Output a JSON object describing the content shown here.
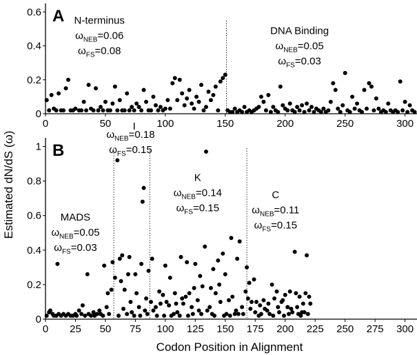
{
  "figure": {
    "ylabel": "Estimated  dN/dS (ω)",
    "xlabel": "Codon Position in Alignment"
  },
  "chart_data": [
    {
      "type": "scatter",
      "panel_label": "A",
      "xlim": [
        0,
        310
      ],
      "ylim": [
        0,
        0.65
      ],
      "x_ticks": [
        0,
        50,
        100,
        150,
        200,
        250,
        300
      ],
      "y_ticks": [
        0,
        0.2,
        0.4,
        0.6
      ],
      "y_tick_labels": [
        "0",
        "0.2",
        "0.4",
        "0.6"
      ],
      "extra_label": {
        "text": "I",
        "x": 74
      },
      "boundaries": [
        151
      ],
      "annotations": [
        {
          "title": "N-terminus",
          "x": 45,
          "y": 0.53,
          "neb": "0.06",
          "fs": "0.08"
        },
        {
          "title": "DNA Binding",
          "x": 212,
          "y": 0.47,
          "neb": "0.05",
          "fs": "0.03"
        }
      ],
      "points": [
        [
          1,
          0.08
        ],
        [
          3,
          0.02
        ],
        [
          5,
          0.11
        ],
        [
          7,
          0.03
        ],
        [
          9,
          0.02
        ],
        [
          11,
          0.12
        ],
        [
          13,
          0.02
        ],
        [
          15,
          0.02
        ],
        [
          17,
          0.15
        ],
        [
          19,
          0.2
        ],
        [
          21,
          0.02
        ],
        [
          23,
          0.02
        ],
        [
          25,
          0.03
        ],
        [
          28,
          0.02
        ],
        [
          30,
          0.02
        ],
        [
          32,
          0.07
        ],
        [
          34,
          0.02
        ],
        [
          36,
          0.17
        ],
        [
          38,
          0.03
        ],
        [
          40,
          0.02
        ],
        [
          42,
          0.15
        ],
        [
          44,
          0.02
        ],
        [
          46,
          0.04
        ],
        [
          48,
          0.02
        ],
        [
          50,
          0.07
        ],
        [
          52,
          0.02
        ],
        [
          54,
          0.02
        ],
        [
          56,
          0.06
        ],
        [
          58,
          0.16
        ],
        [
          60,
          0.02
        ],
        [
          62,
          0.08
        ],
        [
          64,
          0.02
        ],
        [
          66,
          0.02
        ],
        [
          68,
          0.12
        ],
        [
          70,
          0.02
        ],
        [
          72,
          0.04
        ],
        [
          74,
          0.02
        ],
        [
          76,
          0.06
        ],
        [
          78,
          0.04
        ],
        [
          80,
          0.02
        ],
        [
          82,
          0.14
        ],
        [
          84,
          0.07
        ],
        [
          86,
          0.02
        ],
        [
          88,
          0.02
        ],
        [
          90,
          0.1
        ],
        [
          92,
          0.05
        ],
        [
          94,
          0.02
        ],
        [
          96,
          0.04
        ],
        [
          98,
          0.02
        ],
        [
          100,
          0.03
        ],
        [
          102,
          0.08
        ],
        [
          104,
          0.03
        ],
        [
          106,
          0.18
        ],
        [
          108,
          0.21
        ],
        [
          110,
          0.08
        ],
        [
          112,
          0.2
        ],
        [
          114,
          0.12
        ],
        [
          116,
          0.05
        ],
        [
          118,
          0.09
        ],
        [
          120,
          0.14
        ],
        [
          122,
          0.06
        ],
        [
          124,
          0.03
        ],
        [
          126,
          0.1
        ],
        [
          128,
          0.07
        ],
        [
          130,
          0.17
        ],
        [
          132,
          0.02
        ],
        [
          134,
          0.04
        ],
        [
          136,
          0.13
        ],
        [
          138,
          0.08
        ],
        [
          140,
          0.11
        ],
        [
          142,
          0.16
        ],
        [
          144,
          0.02
        ],
        [
          146,
          0.19
        ],
        [
          148,
          0.21
        ],
        [
          150,
          0.23
        ],
        [
          152,
          0.02
        ],
        [
          154,
          0.01
        ],
        [
          156,
          0.01
        ],
        [
          158,
          0.03
        ],
        [
          160,
          0.01
        ],
        [
          162,
          0.02
        ],
        [
          164,
          0.01
        ],
        [
          166,
          0.04
        ],
        [
          168,
          0.01
        ],
        [
          170,
          0.02
        ],
        [
          172,
          0.01
        ],
        [
          174,
          0.02
        ],
        [
          176,
          0.03
        ],
        [
          178,
          0.04
        ],
        [
          180,
          0.1
        ],
        [
          182,
          0.07
        ],
        [
          184,
          0.02
        ],
        [
          186,
          0.11
        ],
        [
          188,
          0.01
        ],
        [
          190,
          0.04
        ],
        [
          192,
          0.02
        ],
        [
          194,
          0.01
        ],
        [
          196,
          0.16
        ],
        [
          198,
          0.05
        ],
        [
          200,
          0.03
        ],
        [
          202,
          0.02
        ],
        [
          204,
          0.06
        ],
        [
          206,
          0.02
        ],
        [
          208,
          0.01
        ],
        [
          210,
          0.04
        ],
        [
          212,
          0.02
        ],
        [
          214,
          0.05
        ],
        [
          216,
          0.01
        ],
        [
          218,
          0.06
        ],
        [
          220,
          0.02
        ],
        [
          222,
          0.04
        ],
        [
          224,
          0.01
        ],
        [
          226,
          0.03
        ],
        [
          228,
          0.02
        ],
        [
          230,
          0.01
        ],
        [
          232,
          0.03
        ],
        [
          234,
          0.01
        ],
        [
          236,
          0.02
        ],
        [
          238,
          0.07
        ],
        [
          240,
          0.18
        ],
        [
          242,
          0.14
        ],
        [
          244,
          0.03
        ],
        [
          246,
          0.01
        ],
        [
          248,
          0.05
        ],
        [
          250,
          0.24
        ],
        [
          252,
          0.02
        ],
        [
          254,
          0.01
        ],
        [
          256,
          0.1
        ],
        [
          258,
          0.03
        ],
        [
          260,
          0.06
        ],
        [
          262,
          0.02
        ],
        [
          264,
          0.01
        ],
        [
          266,
          0.14
        ],
        [
          268,
          0.03
        ],
        [
          270,
          0.18
        ],
        [
          272,
          0.16
        ],
        [
          274,
          0.02
        ],
        [
          276,
          0.09
        ],
        [
          278,
          0.03
        ],
        [
          280,
          0.01
        ],
        [
          282,
          0.02
        ],
        [
          284,
          0.01
        ],
        [
          286,
          0.06
        ],
        [
          288,
          0.02
        ],
        [
          290,
          0.01
        ],
        [
          292,
          0.02
        ],
        [
          294,
          0.01
        ],
        [
          296,
          0.19
        ],
        [
          298,
          0.02
        ],
        [
          300,
          0.07
        ],
        [
          302,
          0.01
        ],
        [
          304,
          0.05
        ],
        [
          306,
          0.02
        ],
        [
          308,
          0.01
        ]
      ]
    },
    {
      "type": "scatter",
      "panel_label": "B",
      "xlim": [
        0,
        310
      ],
      "ylim": [
        0,
        1.05
      ],
      "x_ticks": [
        0,
        25,
        50,
        75,
        100,
        125,
        150,
        175,
        200,
        225,
        250,
        275,
        300
      ],
      "y_ticks": [
        0,
        0.2,
        0.4,
        0.6,
        0.8,
        1
      ],
      "y_tick_labels": [
        "0",
        "0.2",
        "0.4",
        "0.6",
        "0.8",
        "1"
      ],
      "boundaries": [
        57,
        87,
        168
      ],
      "annotations": [
        {
          "title": "MADS",
          "x": 25,
          "y": 0.57,
          "neb": "0.05",
          "fs": "0.03"
        },
        {
          "title": "",
          "x": 71,
          "y": 1.05,
          "neb": "0.18",
          "fs": "0.15"
        },
        {
          "title": "K",
          "x": 127,
          "y": 0.8,
          "neb": "0.14",
          "fs": "0.15"
        },
        {
          "title": "C",
          "x": 192,
          "y": 0.7,
          "neb": "0.11",
          "fs": "0.15"
        }
      ],
      "points": [
        [
          1,
          0.02
        ],
        [
          3,
          0.04
        ],
        [
          4,
          0.05
        ],
        [
          6,
          0.03
        ],
        [
          7,
          0.02
        ],
        [
          9,
          0.02
        ],
        [
          10,
          0.32
        ],
        [
          11,
          0.03
        ],
        [
          13,
          0.02
        ],
        [
          15,
          0.03
        ],
        [
          17,
          0.02
        ],
        [
          19,
          0.03
        ],
        [
          21,
          0.02
        ],
        [
          23,
          0.02
        ],
        [
          25,
          0.03
        ],
        [
          26,
          0.02
        ],
        [
          28,
          0.05
        ],
        [
          30,
          0.03
        ],
        [
          31,
          0.08
        ],
        [
          33,
          0.02
        ],
        [
          35,
          0.26
        ],
        [
          36,
          0.03
        ],
        [
          38,
          0.02
        ],
        [
          40,
          0.04
        ],
        [
          41,
          0.02
        ],
        [
          43,
          0.03
        ],
        [
          45,
          0.05
        ],
        [
          46,
          0.03
        ],
        [
          48,
          0.02
        ],
        [
          49,
          0.31
        ],
        [
          51,
          0.07
        ],
        [
          52,
          0.15
        ],
        [
          53,
          0.03
        ],
        [
          55,
          0.17
        ],
        [
          56,
          0.33
        ],
        [
          58,
          0.24
        ],
        [
          60,
          0.92
        ],
        [
          61,
          0.02
        ],
        [
          62,
          0.35
        ],
        [
          63,
          0.22
        ],
        [
          64,
          0.37
        ],
        [
          65,
          0.06
        ],
        [
          66,
          0.17
        ],
        [
          68,
          0.03
        ],
        [
          69,
          0.26
        ],
        [
          70,
          0.36
        ],
        [
          71,
          0.1
        ],
        [
          72,
          0.04
        ],
        [
          74,
          0.02
        ],
        [
          75,
          0.26
        ],
        [
          76,
          0.15
        ],
        [
          78,
          0.07
        ],
        [
          79,
          0.02
        ],
        [
          80,
          0.32
        ],
        [
          81,
          0.68
        ],
        [
          82,
          0.76
        ],
        [
          83,
          0.05
        ],
        [
          84,
          0.12
        ],
        [
          85,
          0.03
        ],
        [
          86,
          0.28
        ],
        [
          88,
          0.1
        ],
        [
          89,
          0.35
        ],
        [
          90,
          0.05
        ],
        [
          92,
          0.07
        ],
        [
          93,
          0.02
        ],
        [
          95,
          0.16
        ],
        [
          96,
          0.09
        ],
        [
          98,
          0.14
        ],
        [
          99,
          0.02
        ],
        [
          100,
          0.31
        ],
        [
          101,
          0.1
        ],
        [
          103,
          0.08
        ],
        [
          104,
          0.24
        ],
        [
          105,
          0.02
        ],
        [
          107,
          0.03
        ],
        [
          108,
          0.15
        ],
        [
          109,
          0.09
        ],
        [
          110,
          0.04
        ],
        [
          112,
          0.02
        ],
        [
          113,
          0.36
        ],
        [
          114,
          0.12
        ],
        [
          115,
          0.09
        ],
        [
          117,
          0.13
        ],
        [
          118,
          0.33
        ],
        [
          119,
          0.02
        ],
        [
          120,
          0.15
        ],
        [
          122,
          0.07
        ],
        [
          123,
          0.03
        ],
        [
          124,
          0.18
        ],
        [
          125,
          0.32
        ],
        [
          127,
          0.11
        ],
        [
          128,
          0.05
        ],
        [
          129,
          0.25
        ],
        [
          130,
          0.03
        ],
        [
          131,
          0.19
        ],
        [
          133,
          0.42
        ],
        [
          134,
          0.97
        ],
        [
          135,
          0.05
        ],
        [
          137,
          0.07
        ],
        [
          138,
          0.18
        ],
        [
          139,
          0.03
        ],
        [
          140,
          0.29
        ],
        [
          141,
          0.02
        ],
        [
          142,
          0.15
        ],
        [
          144,
          0.34
        ],
        [
          145,
          0.2
        ],
        [
          146,
          0.1
        ],
        [
          148,
          0.38
        ],
        [
          149,
          0.02
        ],
        [
          150,
          0.26
        ],
        [
          151,
          0.03
        ],
        [
          153,
          0.11
        ],
        [
          154,
          0.02
        ],
        [
          155,
          0.47
        ],
        [
          156,
          0.13
        ],
        [
          158,
          0.03
        ],
        [
          159,
          0.05
        ],
        [
          160,
          0.35
        ],
        [
          161,
          0.03
        ],
        [
          162,
          0.45
        ],
        [
          164,
          0.07
        ],
        [
          165,
          0.03
        ],
        [
          167,
          0.16
        ],
        [
          168,
          0.3
        ],
        [
          169,
          0.12
        ],
        [
          170,
          0.21
        ],
        [
          171,
          0.06
        ],
        [
          172,
          0.1
        ],
        [
          174,
          0.23
        ],
        [
          175,
          0.04
        ],
        [
          176,
          0.1
        ],
        [
          178,
          0.02
        ],
        [
          179,
          0.08
        ],
        [
          180,
          0.03
        ],
        [
          182,
          0.11
        ],
        [
          183,
          0.06
        ],
        [
          185,
          0.05
        ],
        [
          186,
          0.09
        ],
        [
          187,
          0.03
        ],
        [
          189,
          0.2
        ],
        [
          190,
          0.02
        ],
        [
          191,
          0.12
        ],
        [
          193,
          0.16
        ],
        [
          194,
          0.07
        ],
        [
          195,
          0.04
        ],
        [
          197,
          0.1
        ],
        [
          198,
          0.11
        ],
        [
          199,
          0.02
        ],
        [
          200,
          0.14
        ],
        [
          202,
          0.07
        ],
        [
          203,
          0.03
        ],
        [
          204,
          0.16
        ],
        [
          205,
          0.06
        ],
        [
          206,
          0.04
        ],
        [
          208,
          0.39
        ],
        [
          209,
          0.15
        ],
        [
          210,
          0.07
        ],
        [
          211,
          0.03
        ],
        [
          212,
          0.13
        ],
        [
          213,
          0.02
        ],
        [
          214,
          0.04
        ],
        [
          215,
          0.09
        ],
        [
          216,
          0.04
        ],
        [
          217,
          0.15
        ],
        [
          218,
          0.37
        ],
        [
          219,
          0.03
        ],
        [
          220,
          0.13
        ],
        [
          221,
          0.09
        ]
      ]
    }
  ]
}
